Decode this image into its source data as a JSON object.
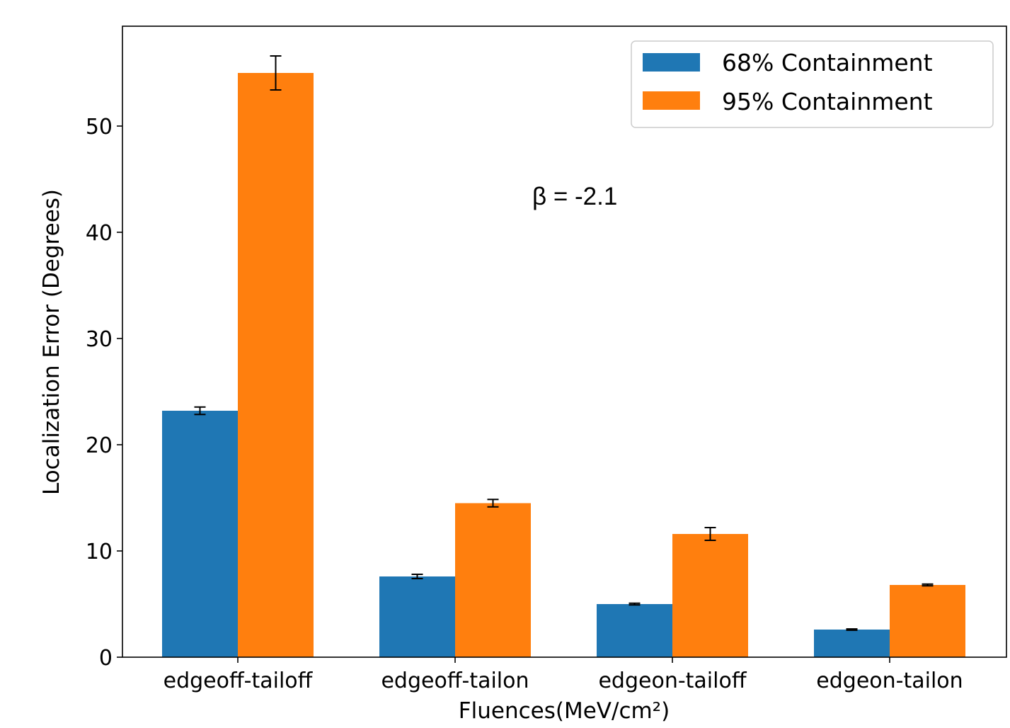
{
  "chart_data": {
    "type": "bar",
    "categories": [
      "edgeoff-tailoff",
      "edgeoff-tailon",
      "edgeon-tailoff",
      "edgeon-tailon"
    ],
    "series": [
      {
        "name": "68% Containment",
        "color": "#1f77b4",
        "values": [
          23.2,
          7.6,
          5.0,
          2.6
        ],
        "errors": [
          0.35,
          0.2,
          0.08,
          0.06
        ]
      },
      {
        "name": "95% Containment",
        "color": "#ff7f0e",
        "values": [
          55.0,
          14.5,
          11.6,
          6.8
        ],
        "errors": [
          1.6,
          0.35,
          0.6,
          0.08
        ]
      }
    ],
    "xlabel": "Fluences(MeV/cm²)",
    "ylabel": "Localization Error (Degrees)",
    "ylim": [
      0,
      59.4
    ],
    "yticks": [
      0,
      10,
      20,
      30,
      40,
      50
    ],
    "grid": false,
    "legend_position": "top-right",
    "annotation": "β = -2.1"
  }
}
